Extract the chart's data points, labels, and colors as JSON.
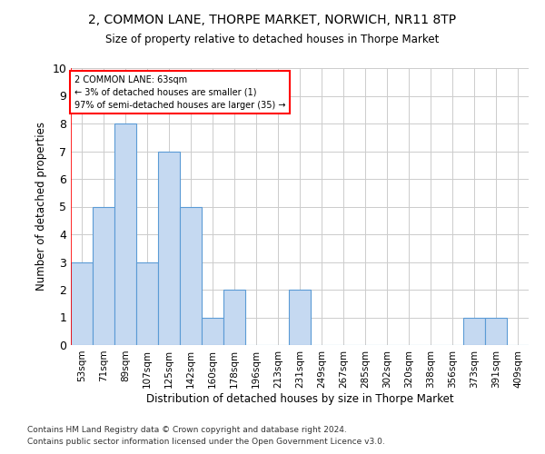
{
  "title": "2, COMMON LANE, THORPE MARKET, NORWICH, NR11 8TP",
  "subtitle": "Size of property relative to detached houses in Thorpe Market",
  "xlabel": "Distribution of detached houses by size in Thorpe Market",
  "ylabel": "Number of detached properties",
  "footnote1": "Contains HM Land Registry data © Crown copyright and database right 2024.",
  "footnote2": "Contains public sector information licensed under the Open Government Licence v3.0.",
  "annotation_line1": "2 COMMON LANE: 63sqm",
  "annotation_line2": "← 3% of detached houses are smaller (1)",
  "annotation_line3": "97% of semi-detached houses are larger (35) →",
  "categories": [
    "53sqm",
    "71sqm",
    "89sqm",
    "107sqm",
    "125sqm",
    "142sqm",
    "160sqm",
    "178sqm",
    "196sqm",
    "213sqm",
    "231sqm",
    "249sqm",
    "267sqm",
    "285sqm",
    "302sqm",
    "320sqm",
    "338sqm",
    "356sqm",
    "373sqm",
    "391sqm",
    "409sqm"
  ],
  "values": [
    3,
    5,
    8,
    3,
    7,
    5,
    1,
    2,
    0,
    0,
    2,
    0,
    0,
    0,
    0,
    0,
    0,
    0,
    1,
    1,
    0
  ],
  "bar_color": "#c5d9f1",
  "bar_edge_color": "#5b9bd5",
  "ylim": [
    0,
    10
  ],
  "yticks": [
    0,
    1,
    2,
    3,
    4,
    5,
    6,
    7,
    8,
    9,
    10
  ],
  "background_color": "#ffffff",
  "grid_color": "#cccccc",
  "annotation_box_color": "#ffffff",
  "annotation_box_edge": "#ff0000",
  "vline_color": "#ff0000",
  "vline_x": 0
}
